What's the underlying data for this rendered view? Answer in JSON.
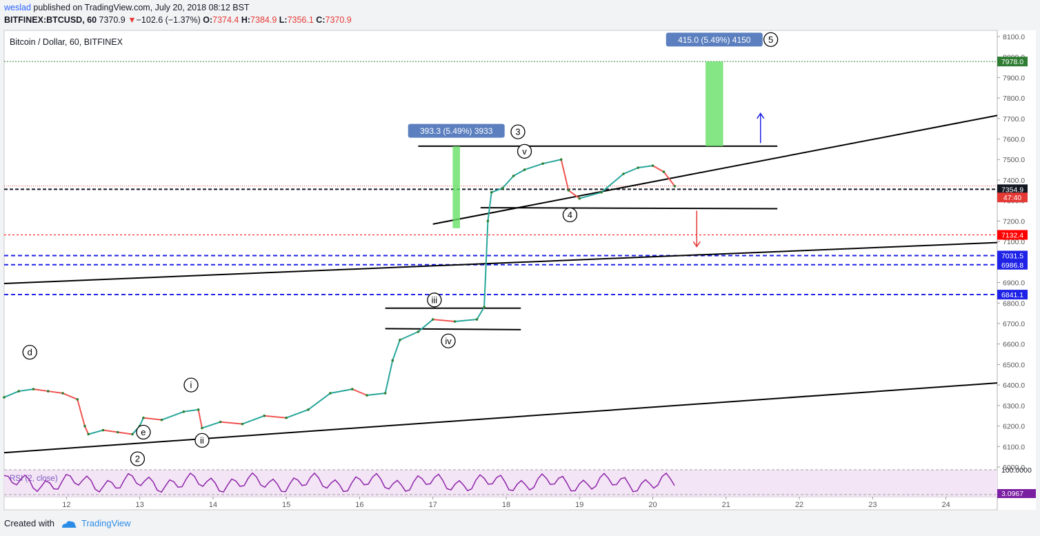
{
  "header": {
    "user": "weslad",
    "published": " published on TradingView.com, July 20, 2018 08:12 BST",
    "symbol": "BITFINEX:BTCUSD, 60",
    "last": "7370.9",
    "change_arrow": "▼",
    "change": "−102.6 (−1.37%)",
    "o_label": "O:",
    "o_value": "7374.4",
    "h_label": "H:",
    "h_value": "7384.9",
    "l_label": "L:",
    "l_value": "7356.1",
    "c_label": "C:",
    "c_value": "7370.9"
  },
  "footer": {
    "created_with": "Created with",
    "brand": "TradingView"
  },
  "chart_data": {
    "type": "line",
    "title": "Bitcoin / Dollar, 60, BITFINEX",
    "x_tick_labels": [
      "12",
      "13",
      "14",
      "15",
      "16",
      "17",
      "18",
      "19",
      "20",
      "21",
      "22",
      "23",
      "24"
    ],
    "y_tick_labels": [
      "6000.0",
      "6100.0",
      "6200.0",
      "6300.0",
      "6400.0",
      "6500.0",
      "6600.0",
      "6700.0",
      "6800.0",
      "6900.0",
      "7000.0",
      "7100.0",
      "7200.0",
      "7300.0",
      "7400.0",
      "7500.0",
      "7600.0",
      "7700.0",
      "7800.0",
      "7900.0",
      "8000.0",
      "8100.0"
    ],
    "ylim": [
      5990,
      8130
    ],
    "xlim": [
      11.15,
      24.7
    ],
    "series": [
      {
        "x": [
          11.15,
          11.35,
          11.55,
          11.75,
          11.95,
          12.15,
          12.25,
          12.3,
          12.5,
          12.7,
          12.9,
          13.0,
          13.05,
          13.3,
          13.6,
          13.8,
          13.85,
          14.1,
          14.4,
          14.7,
          15.0,
          15.3,
          15.6,
          15.9,
          16.1,
          16.35,
          16.45,
          16.55,
          16.8,
          17.0,
          17.3,
          17.6,
          17.7,
          17.75,
          17.8,
          17.95,
          18.1,
          18.25,
          18.5,
          18.75,
          18.85,
          19.0,
          19.3,
          19.6,
          19.8,
          20.0,
          20.15,
          20.3
        ],
        "y": [
          6340,
          6370,
          6380,
          6370,
          6360,
          6330,
          6200,
          6160,
          6180,
          6170,
          6160,
          6200,
          6240,
          6230,
          6270,
          6280,
          6190,
          6220,
          6210,
          6250,
          6240,
          6280,
          6360,
          6380,
          6350,
          6360,
          6520,
          6620,
          6660,
          6720,
          6710,
          6720,
          6780,
          7200,
          7340,
          7360,
          7420,
          7450,
          7480,
          7500,
          7350,
          7310,
          7340,
          7430,
          7460,
          7470,
          7440,
          7370
        ]
      }
    ],
    "price_labels": [
      {
        "value": 7978.0,
        "label": "7978.0",
        "color": "#2e7d32"
      },
      {
        "value": 7354.9,
        "label": "7354.9",
        "color": "#131722"
      },
      {
        "value": 7315,
        "label": "47:40",
        "color": "#e53935"
      },
      {
        "value": 7132.4,
        "label": "7132.4",
        "color": "#ff0000"
      },
      {
        "value": 7031.5,
        "label": "7031.5",
        "color": "#1e22e6"
      },
      {
        "value": 6986.8,
        "label": "6986.8",
        "color": "#1e22e6"
      },
      {
        "value": 6841.1,
        "label": "6841.1",
        "color": "#1e22e6"
      }
    ],
    "wave_labels": [
      {
        "x": 11.5,
        "y": 6560,
        "label": "d"
      },
      {
        "x": 13.05,
        "y": 6170,
        "label": "e"
      },
      {
        "x": 12.97,
        "y": 6040,
        "label": "2"
      },
      {
        "x": 13.7,
        "y": 6400,
        "label": "i"
      },
      {
        "x": 13.85,
        "y": 6130,
        "label": "ii"
      },
      {
        "x": 17.02,
        "y": 6815,
        "label": "iii"
      },
      {
        "x": 17.21,
        "y": 6615,
        "label": "iv"
      },
      {
        "x": 18.25,
        "y": 7540,
        "label": "v"
      },
      {
        "x": 18.16,
        "y": 7635,
        "label": "3"
      },
      {
        "x": 18.87,
        "y": 7230,
        "label": "4"
      },
      {
        "x": 21.61,
        "y": 8085,
        "label": "5"
      }
    ],
    "measurements": [
      {
        "x": 17.32,
        "y": 7640,
        "label": "393.3 (5.49%) 3933"
      },
      {
        "x": 20.84,
        "y": 8085,
        "label": "415.0 (5.49%) 4150"
      }
    ],
    "indicator": {
      "name": "RSI (2, close)",
      "tick_labels": [
        "100.0000",
        "3.0967"
      ]
    }
  }
}
